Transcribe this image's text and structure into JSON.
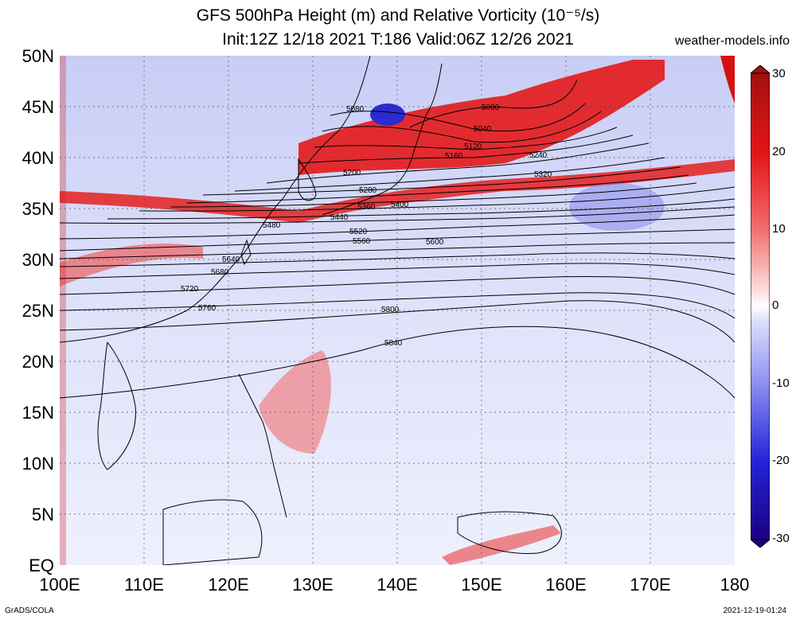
{
  "title": {
    "line1": "GFS 500hPa Height (m) and Relative Vorticity (10⁻⁵/s)",
    "line2": "Init:12Z 12/18 2021 T:186 Valid:06Z 12/26 2021",
    "site": "weather-models.info"
  },
  "footer": {
    "left": "GrADS/COLA",
    "right": "2021-12-19-01:24"
  },
  "axes": {
    "lat_labels": [
      "50N",
      "45N",
      "40N",
      "35N",
      "30N",
      "25N",
      "20N",
      "15N",
      "10N",
      "5N",
      "EQ"
    ],
    "lon_labels": [
      "100E",
      "110E",
      "120E",
      "130E",
      "140E",
      "150E",
      "160E",
      "170E",
      "180"
    ]
  },
  "colorbar": {
    "ticks": [
      "30",
      "20",
      "10",
      "0",
      "-10",
      "-20",
      "-30"
    ],
    "colors": [
      "#a01010",
      "#e21515",
      "#f26a6a",
      "#fde0e0",
      "#ffffff",
      "#dde0fb",
      "#8a8cf0",
      "#2424d8",
      "#1a0080"
    ]
  },
  "contours": {
    "labels": [
      "5000",
      "5040",
      "5080",
      "5120",
      "5160",
      "5200",
      "5240",
      "5280",
      "5320",
      "5360",
      "5400",
      "5440",
      "5480",
      "5520",
      "5560",
      "5600",
      "5640",
      "5680",
      "5720",
      "5760",
      "5800",
      "5840"
    ]
  }
}
